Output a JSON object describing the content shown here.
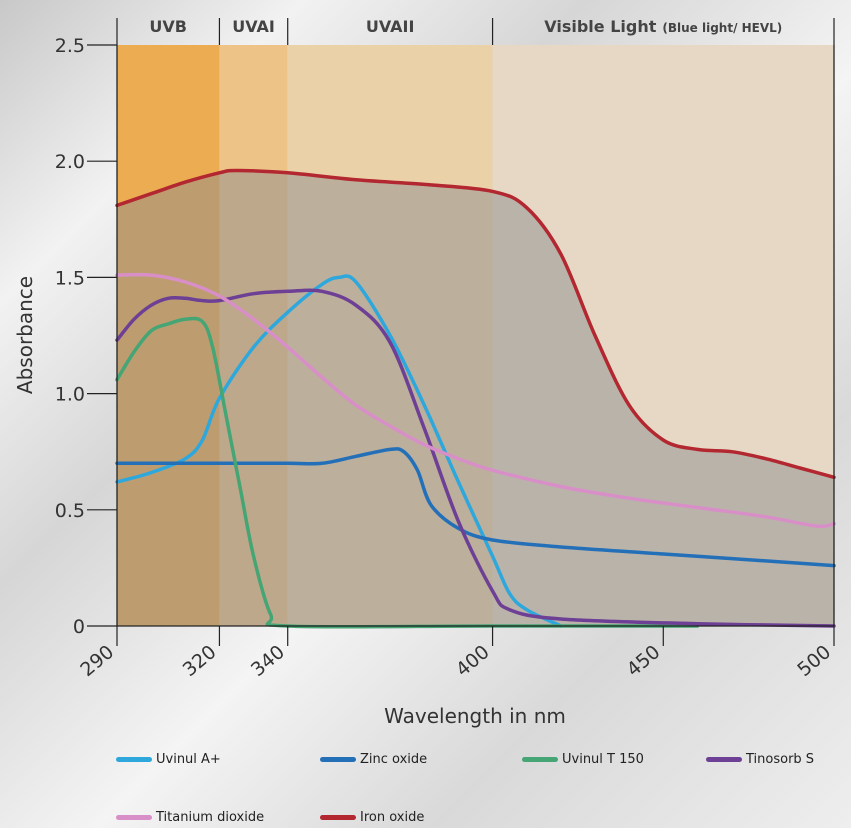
{
  "chart_data": {
    "type": "line",
    "title": "",
    "xlabel": "Wavelength in nm",
    "ylabel": "Absorbance",
    "xlim": [
      290,
      500
    ],
    "ylim": [
      0,
      2.5
    ],
    "x_ticks": [
      "290",
      "320",
      "340",
      "400",
      "450",
      "500"
    ],
    "y_ticks": [
      "0",
      "0.5",
      "1.0",
      "1.5",
      "2.0",
      "2.5"
    ],
    "regions": [
      {
        "label": "UVB",
        "sublabel": "",
        "from": 290,
        "to": 320,
        "color": "#ecac52"
      },
      {
        "label": "UVAI",
        "sublabel": "",
        "from": 320,
        "to": 340,
        "color": "#eec388"
      },
      {
        "label": "UVAII",
        "sublabel": "",
        "from": 340,
        "to": 400,
        "color": "#ebd1a8"
      },
      {
        "label": "Visible Light",
        "sublabel": "(Blue light/ HEVL)",
        "from": 400,
        "to": 500,
        "color": "#e6d8c5"
      }
    ],
    "series": [
      {
        "name": "Uvinul A+",
        "color": "#2ea8dc",
        "x": [
          290,
          300,
          310,
          315,
          320,
          330,
          340,
          350,
          355,
          360,
          370,
          380,
          390,
          400,
          405,
          410,
          420
        ],
        "y": [
          0.62,
          0.66,
          0.72,
          0.8,
          0.98,
          1.2,
          1.35,
          1.47,
          1.5,
          1.48,
          1.25,
          0.95,
          0.62,
          0.3,
          0.14,
          0.07,
          0.0
        ]
      },
      {
        "name": "Zinc oxide",
        "color": "#2370b9",
        "x": [
          290,
          300,
          320,
          340,
          350,
          360,
          370,
          374,
          378,
          382,
          390,
          400,
          420,
          450,
          480,
          500
        ],
        "y": [
          0.7,
          0.7,
          0.7,
          0.7,
          0.7,
          0.73,
          0.76,
          0.75,
          0.67,
          0.52,
          0.42,
          0.37,
          0.34,
          0.31,
          0.28,
          0.26
        ]
      },
      {
        "name": "Uvinul T 150",
        "color": "#45a574",
        "x": [
          290,
          295,
          300,
          305,
          310,
          315,
          318,
          322,
          326,
          330,
          335,
          340,
          400,
          460
        ],
        "y": [
          1.06,
          1.18,
          1.27,
          1.3,
          1.32,
          1.31,
          1.2,
          0.9,
          0.6,
          0.3,
          0.05,
          0.0,
          0.0,
          0.0
        ]
      },
      {
        "name": "Tinosorb S",
        "color": "#6d3f95",
        "x": [
          290,
          295,
          300,
          305,
          310,
          315,
          320,
          330,
          340,
          350,
          360,
          370,
          380,
          390,
          400,
          405,
          420,
          460,
          500
        ],
        "y": [
          1.23,
          1.32,
          1.38,
          1.41,
          1.41,
          1.4,
          1.4,
          1.43,
          1.44,
          1.44,
          1.38,
          1.22,
          0.85,
          0.45,
          0.15,
          0.07,
          0.03,
          0.01,
          0.0
        ]
      },
      {
        "name": "Titanium dioxide",
        "color": "#d88fc8",
        "x": [
          290,
          300,
          310,
          320,
          330,
          340,
          350,
          360,
          370,
          380,
          390,
          400,
          420,
          440,
          460,
          480,
          495,
          500
        ],
        "y": [
          1.51,
          1.51,
          1.48,
          1.42,
          1.32,
          1.2,
          1.07,
          0.95,
          0.86,
          0.78,
          0.72,
          0.67,
          0.6,
          0.55,
          0.51,
          0.47,
          0.43,
          0.44
        ]
      },
      {
        "name": "Iron oxide",
        "color": "#b32730",
        "x": [
          290,
          300,
          310,
          320,
          325,
          340,
          360,
          380,
          400,
          410,
          420,
          430,
          440,
          450,
          460,
          470,
          480,
          490,
          500
        ],
        "y": [
          1.81,
          1.86,
          1.91,
          1.95,
          1.96,
          1.95,
          1.92,
          1.9,
          1.87,
          1.8,
          1.6,
          1.25,
          0.95,
          0.8,
          0.76,
          0.75,
          0.72,
          0.68,
          0.64
        ]
      }
    ],
    "fill_series": "Iron oxide",
    "fill_color": "#8e8e8e",
    "legend_position": "bottom",
    "grid": false
  }
}
